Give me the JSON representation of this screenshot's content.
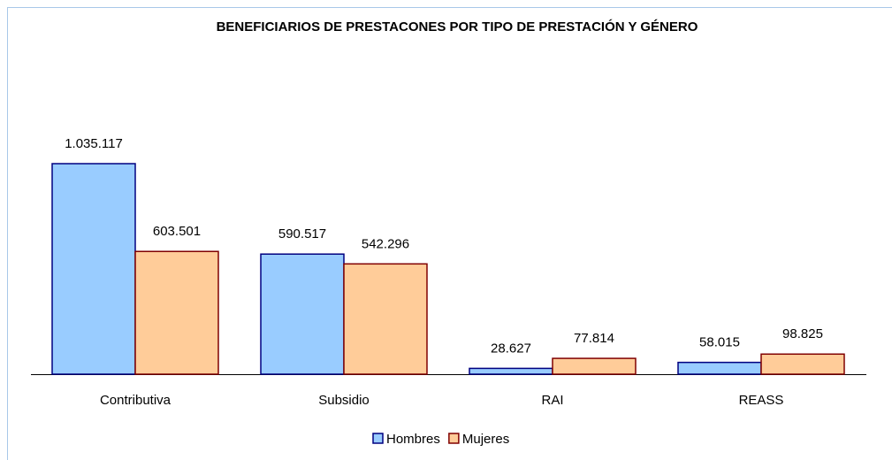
{
  "chart_data": {
    "type": "bar",
    "title": "BENEFICIARIOS DE PRESTACONES POR TIPO DE PRESTACIÓN Y GÉNERO",
    "categories": [
      "Contributiva",
      "Subsidio",
      "RAI",
      "REASS"
    ],
    "series": [
      {
        "name": "Hombres",
        "color": "#99ccff",
        "edge": "#000080",
        "values": [
          1035117,
          590517,
          28627,
          58015
        ],
        "value_labels": [
          "1.035.117",
          "590.517",
          "28.627",
          "58.015"
        ]
      },
      {
        "name": "Mujeres",
        "color": "#ffcc99",
        "edge": "#800000",
        "values": [
          603501,
          542296,
          77814,
          98825
        ],
        "value_labels": [
          "603.501",
          "542.296",
          "77.814",
          "98.825"
        ]
      }
    ]
  }
}
